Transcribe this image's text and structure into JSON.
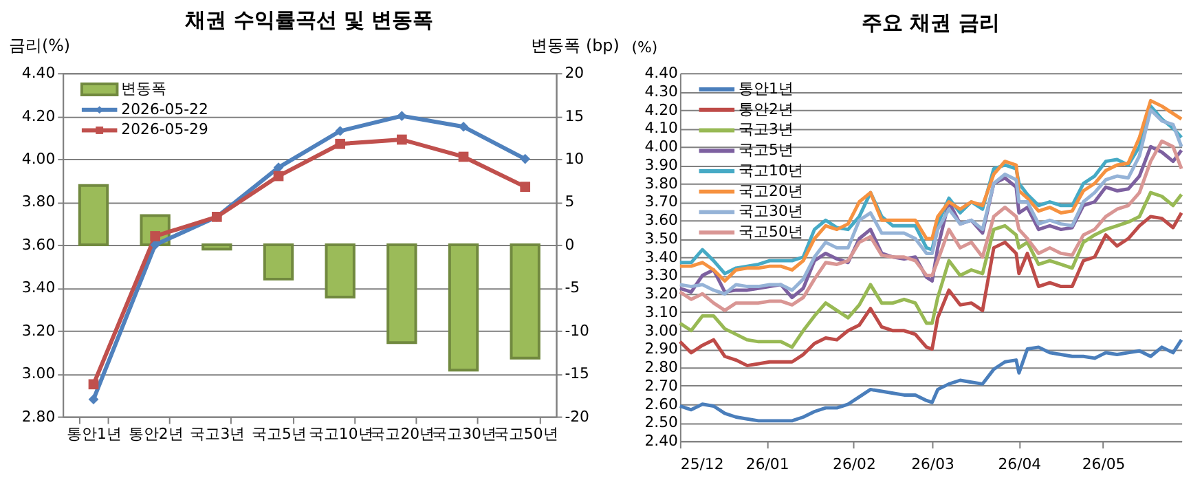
{
  "chart_data": [
    {
      "type": "bar",
      "title": "채권 수익률곡선 및 변동폭",
      "ylabel": "금리(%)",
      "y2label": "변동폭 (bp)",
      "categories": [
        "통안1년",
        "통안2년",
        "국고3년",
        "국고5년",
        "국고10년",
        "국고20년",
        "국고30년",
        "국고50년"
      ],
      "series": [
        {
          "name": "변동폭",
          "type": "bar",
          "axis": "y2",
          "color": "#9bbb59",
          "values": [
            6.9,
            3.4,
            -0.5,
            -4.0,
            -6.1,
            -11.4,
            -14.6,
            -13.2
          ]
        },
        {
          "name": "2026-05-22",
          "type": "line",
          "marker": "diamond",
          "color": "#4f81bd",
          "values": [
            2.88,
            3.6,
            3.73,
            3.96,
            4.13,
            4.2,
            4.15,
            4.0
          ]
        },
        {
          "name": "2026-05-29",
          "type": "line",
          "marker": "square",
          "color": "#c0504d",
          "values": [
            2.95,
            3.64,
            3.73,
            3.92,
            4.07,
            4.09,
            4.01,
            3.87
          ]
        }
      ],
      "ylim": [
        2.8,
        4.4
      ],
      "yticks": [
        {
          "value": 2.8,
          "label": "2.80"
        },
        {
          "value": 3.0,
          "label": "3.00"
        },
        {
          "value": 3.2,
          "label": "3.20"
        },
        {
          "value": 3.4,
          "label": "3.40"
        },
        {
          "value": 3.6,
          "label": "3.60"
        },
        {
          "value": 3.8,
          "label": "3.80"
        },
        {
          "value": 4.0,
          "label": "4.00"
        },
        {
          "value": 4.2,
          "label": "4.20"
        },
        {
          "value": 4.4,
          "label": "4.40"
        }
      ],
      "y2lim": [
        -20,
        20
      ],
      "y2ticks": [
        -20,
        -15,
        -10,
        -5,
        0,
        5,
        10,
        15,
        20
      ],
      "grid": "y",
      "legend": "top left"
    },
    {
      "type": "line",
      "title": "주요 채권 금리",
      "ylabel": "(%)",
      "x": [
        "2025-12-01",
        "2025-12-05",
        "2025-12-09",
        "2025-12-13",
        "2025-12-17",
        "2025-12-21",
        "2025-12-25",
        "2025-12-29",
        "2026-01-02",
        "2026-01-06",
        "2026-01-10",
        "2026-01-14",
        "2026-01-18",
        "2026-01-22",
        "2026-01-26",
        "2026-01-30",
        "2026-02-03",
        "2026-02-07",
        "2026-02-11",
        "2026-02-15",
        "2026-02-19",
        "2026-02-23",
        "2026-02-27",
        "2026-03-01",
        "2026-03-03",
        "2026-03-07",
        "2026-03-11",
        "2026-03-15",
        "2026-03-19",
        "2026-03-23",
        "2026-03-27",
        "2026-03-31",
        "2026-04-01",
        "2026-04-04",
        "2026-04-08",
        "2026-04-12",
        "2026-04-16",
        "2026-04-20",
        "2026-04-24",
        "2026-04-28",
        "2026-05-02",
        "2026-05-06",
        "2026-05-10",
        "2026-05-14",
        "2026-05-18",
        "2026-05-22",
        "2026-05-26",
        "2026-05-29"
      ],
      "series": [
        {
          "name": "통안1년",
          "color": "#4a7ebb",
          "values": [
            2.59,
            2.57,
            2.6,
            2.59,
            2.55,
            2.53,
            2.52,
            2.51,
            2.51,
            2.51,
            2.51,
            2.53,
            2.56,
            2.58,
            2.58,
            2.6,
            2.64,
            2.68,
            2.67,
            2.66,
            2.65,
            2.65,
            2.62,
            2.61,
            2.68,
            2.71,
            2.73,
            2.72,
            2.71,
            2.79,
            2.83,
            2.84,
            2.77,
            2.9,
            2.91,
            2.88,
            2.87,
            2.86,
            2.86,
            2.85,
            2.88,
            2.87,
            2.88,
            2.89,
            2.86,
            2.91,
            2.88,
            2.95
          ]
        },
        {
          "name": "통안2년",
          "color": "#be4b48",
          "values": [
            2.94,
            2.88,
            2.92,
            2.95,
            2.86,
            2.84,
            2.81,
            2.82,
            2.83,
            2.83,
            2.83,
            2.87,
            2.93,
            2.96,
            2.95,
            3.0,
            3.03,
            3.12,
            3.02,
            3.0,
            3.0,
            2.98,
            2.91,
            2.9,
            3.07,
            3.22,
            3.14,
            3.15,
            3.11,
            3.45,
            3.48,
            3.42,
            3.31,
            3.42,
            3.24,
            3.26,
            3.24,
            3.24,
            3.38,
            3.4,
            3.52,
            3.46,
            3.5,
            3.57,
            3.62,
            3.61,
            3.56,
            3.64
          ]
        },
        {
          "name": "국고3년",
          "color": "#98b954",
          "values": [
            3.04,
            3.0,
            3.08,
            3.08,
            3.01,
            2.98,
            2.95,
            2.94,
            2.94,
            2.94,
            2.91,
            3.0,
            3.08,
            3.15,
            3.11,
            3.07,
            3.14,
            3.25,
            3.15,
            3.15,
            3.17,
            3.15,
            3.04,
            3.04,
            3.18,
            3.38,
            3.3,
            3.33,
            3.31,
            3.55,
            3.57,
            3.52,
            3.45,
            3.48,
            3.36,
            3.38,
            3.36,
            3.34,
            3.48,
            3.52,
            3.55,
            3.57,
            3.59,
            3.62,
            3.75,
            3.73,
            3.68,
            3.74
          ]
        },
        {
          "name": "국고5년",
          "color": "#7d60a0",
          "values": [
            3.23,
            3.21,
            3.3,
            3.33,
            3.21,
            3.22,
            3.22,
            3.23,
            3.24,
            3.25,
            3.18,
            3.23,
            3.38,
            3.42,
            3.39,
            3.37,
            3.5,
            3.55,
            3.42,
            3.4,
            3.39,
            3.4,
            3.29,
            3.27,
            3.45,
            3.7,
            3.58,
            3.6,
            3.53,
            3.8,
            3.83,
            3.78,
            3.64,
            3.67,
            3.55,
            3.57,
            3.55,
            3.56,
            3.68,
            3.7,
            3.78,
            3.76,
            3.77,
            3.84,
            4.0,
            3.97,
            3.92,
            3.98
          ]
        },
        {
          "name": "국고10년",
          "color": "#46aac5",
          "values": [
            3.37,
            3.37,
            3.44,
            3.38,
            3.31,
            3.34,
            3.35,
            3.36,
            3.38,
            3.38,
            3.38,
            3.4,
            3.55,
            3.6,
            3.56,
            3.55,
            3.62,
            3.75,
            3.62,
            3.57,
            3.57,
            3.57,
            3.45,
            3.44,
            3.58,
            3.72,
            3.64,
            3.7,
            3.66,
            3.88,
            3.9,
            3.88,
            3.8,
            3.74,
            3.68,
            3.7,
            3.68,
            3.68,
            3.8,
            3.84,
            3.92,
            3.93,
            3.9,
            4.0,
            4.22,
            4.15,
            4.1,
            4.05
          ]
        },
        {
          "name": "국고20년",
          "color": "#f69240",
          "values": [
            3.35,
            3.35,
            3.37,
            3.33,
            3.27,
            3.33,
            3.34,
            3.34,
            3.35,
            3.35,
            3.33,
            3.38,
            3.5,
            3.57,
            3.55,
            3.58,
            3.7,
            3.75,
            3.6,
            3.6,
            3.6,
            3.6,
            3.5,
            3.5,
            3.62,
            3.7,
            3.66,
            3.7,
            3.68,
            3.85,
            3.92,
            3.9,
            3.76,
            3.72,
            3.65,
            3.67,
            3.64,
            3.65,
            3.76,
            3.8,
            3.87,
            3.9,
            3.91,
            4.05,
            4.25,
            4.22,
            4.18,
            4.15
          ]
        },
        {
          "name": "국고30년",
          "color": "#95b3d7",
          "values": [
            3.25,
            3.24,
            3.25,
            3.22,
            3.2,
            3.25,
            3.24,
            3.24,
            3.25,
            3.25,
            3.22,
            3.28,
            3.4,
            3.48,
            3.45,
            3.45,
            3.6,
            3.64,
            3.53,
            3.53,
            3.53,
            3.5,
            3.42,
            3.42,
            3.55,
            3.66,
            3.58,
            3.6,
            3.55,
            3.8,
            3.85,
            3.82,
            3.7,
            3.7,
            3.58,
            3.6,
            3.58,
            3.57,
            3.7,
            3.75,
            3.82,
            3.84,
            3.83,
            3.95,
            4.2,
            4.14,
            4.12,
            4.0
          ]
        },
        {
          "name": "국고50년",
          "color": "#d99694",
          "values": [
            3.21,
            3.17,
            3.2,
            3.15,
            3.11,
            3.15,
            3.15,
            3.15,
            3.16,
            3.16,
            3.14,
            3.18,
            3.28,
            3.37,
            3.36,
            3.38,
            3.48,
            3.51,
            3.41,
            3.4,
            3.4,
            3.38,
            3.3,
            3.3,
            3.38,
            3.55,
            3.45,
            3.48,
            3.4,
            3.62,
            3.67,
            3.62,
            3.55,
            3.5,
            3.42,
            3.45,
            3.42,
            3.41,
            3.52,
            3.55,
            3.62,
            3.66,
            3.68,
            3.75,
            3.92,
            4.03,
            4.0,
            3.88
          ]
        }
      ],
      "xlim": [
        "2025-12-01",
        "2026-05-29"
      ],
      "xticks": [
        {
          "value": "2025-12-01",
          "label": "25/12"
        },
        {
          "value": "2026-01-01",
          "label": "26/01"
        },
        {
          "value": "2026-02-01",
          "label": "26/02"
        },
        {
          "value": "2026-03-01",
          "label": "26/03"
        },
        {
          "value": "2026-04-01",
          "label": "26/04"
        },
        {
          "value": "2026-05-01",
          "label": "26/05"
        }
      ],
      "ylim": [
        2.4,
        4.4
      ],
      "yticks": [
        {
          "value": 2.4,
          "label": "2.40"
        },
        {
          "value": 2.5,
          "label": "2.50"
        },
        {
          "value": 2.6,
          "label": "2.60"
        },
        {
          "value": 2.7,
          "label": "2.70"
        },
        {
          "value": 2.8,
          "label": "2.80"
        },
        {
          "value": 2.9,
          "label": "2.90"
        },
        {
          "value": 3.0,
          "label": "3.00"
        },
        {
          "value": 3.1,
          "label": "3.10"
        },
        {
          "value": 3.2,
          "label": "3.20"
        },
        {
          "value": 3.3,
          "label": "3.30"
        },
        {
          "value": 3.4,
          "label": "3.40"
        },
        {
          "value": 3.5,
          "label": "3.50"
        },
        {
          "value": 3.6,
          "label": "3.60"
        },
        {
          "value": 3.7,
          "label": "3.70"
        },
        {
          "value": 3.8,
          "label": "3.80"
        },
        {
          "value": 3.9,
          "label": "3.90"
        },
        {
          "value": 4.0,
          "label": "4.00"
        },
        {
          "value": 4.1,
          "label": "4.10"
        },
        {
          "value": 4.2,
          "label": "4.20"
        },
        {
          "value": 4.3,
          "label": "4.30"
        },
        {
          "value": 4.4,
          "label": "4.40"
        }
      ],
      "grid": "y",
      "legend": "top left"
    }
  ]
}
